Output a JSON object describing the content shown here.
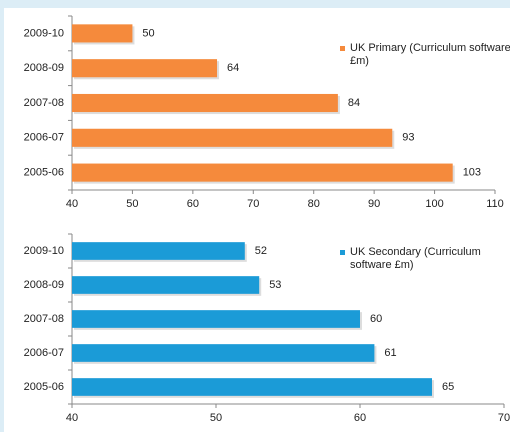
{
  "chart_data": [
    {
      "type": "bar",
      "orientation": "horizontal",
      "categories": [
        "2009-10",
        "2008-09",
        "2007-08",
        "2006-07",
        "2005-06"
      ],
      "series": [
        {
          "name": "UK Primary (Curriculum software £m)",
          "color": "#f58a3c",
          "values": [
            50,
            64,
            84,
            93,
            103
          ]
        }
      ],
      "xlim": [
        40,
        110
      ],
      "xticks": [
        40,
        50,
        60,
        70,
        80,
        90,
        100,
        110
      ],
      "legend": "top-right"
    },
    {
      "type": "bar",
      "orientation": "horizontal",
      "categories": [
        "2009-10",
        "2008-09",
        "2007-08",
        "2006-07",
        "2005-06"
      ],
      "series": [
        {
          "name": "UK Secondary (Curriculum software £m)",
          "color": "#1b9bd7",
          "values": [
            52,
            53,
            60,
            61,
            65
          ]
        }
      ],
      "xlim": [
        40,
        70
      ],
      "xticks": [
        40,
        50,
        60,
        70
      ],
      "legend": "top-right"
    }
  ]
}
